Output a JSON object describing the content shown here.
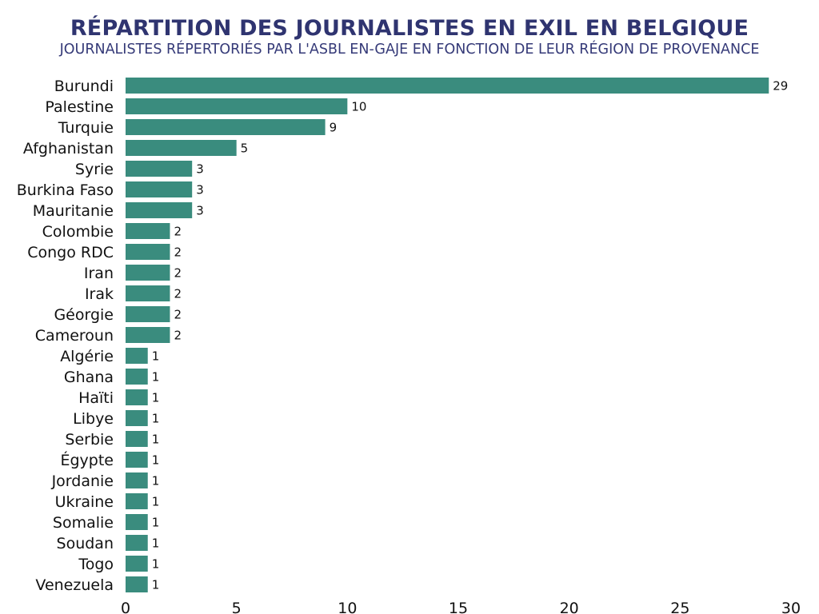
{
  "chart_data": {
    "type": "bar",
    "orientation": "horizontal",
    "title": "RÉPARTITION DES JOURNALISTES EN EXIL EN BELGIQUE",
    "subtitle": "JOURNALISTES RÉPERTORIÉS PAR L'ASBL EN-GAJE EN FONCTION DE LEUR RÉGION DE PROVENANCE",
    "xlabel": "",
    "ylabel": "",
    "categories": [
      "Burundi",
      "Palestine",
      "Turquie",
      "Afghanistan",
      "Syrie",
      "Burkina Faso",
      "Mauritanie",
      "Colombie",
      "Congo RDC",
      "Iran",
      "Irak",
      "Géorgie",
      "Cameroun",
      "Algérie",
      "Ghana",
      "Haïti",
      "Libye",
      "Serbie",
      "Égypte",
      "Jordanie",
      "Ukraine",
      "Somalie",
      "Soudan",
      "Togo",
      "Venezuela"
    ],
    "values": [
      29,
      10,
      9,
      5,
      3,
      3,
      3,
      2,
      2,
      2,
      2,
      2,
      2,
      1,
      1,
      1,
      1,
      1,
      1,
      1,
      1,
      1,
      1,
      1,
      1
    ],
    "xlim": [
      0,
      30
    ],
    "xticks": [
      0,
      5,
      10,
      15,
      20,
      25,
      30
    ],
    "grid": false,
    "legend": "none",
    "bar_color": "#3a8c7e",
    "title_color": "#2f3470"
  }
}
